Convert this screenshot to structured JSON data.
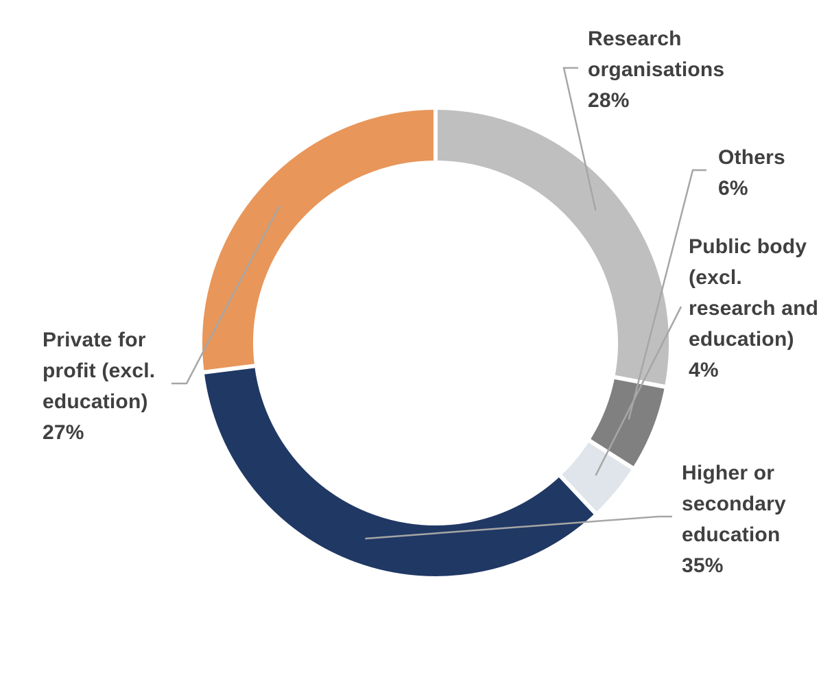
{
  "chart_data": {
    "type": "pie",
    "variant": "donut",
    "start": "top",
    "direction": "clockwise",
    "legend": "none",
    "grid": false,
    "slices": [
      {
        "label": "Research organisations",
        "label_lines": [
          "Research",
          "organisations"
        ],
        "value": 28,
        "value_label": "28%",
        "color": "#BFBFBF"
      },
      {
        "label": "Others",
        "label_lines": [
          "Others"
        ],
        "value": 6,
        "value_label": "6%",
        "color": "#808080"
      },
      {
        "label": "Public body (excl. research and education)",
        "label_lines": [
          "Public body",
          "(excl.",
          "research and",
          "education)"
        ],
        "value": 4,
        "value_label": "4%",
        "color": "#DFE5EA"
      },
      {
        "label": "Higher or secondary education",
        "label_lines": [
          "Higher or",
          "secondary",
          "education"
        ],
        "value": 35,
        "value_label": "35%",
        "color": "#203864"
      },
      {
        "label": "Private for profit (excl. education)",
        "label_lines": [
          "Private for",
          "profit (excl.",
          "education)"
        ],
        "value": 27,
        "value_label": "27%",
        "color": "#E8965A"
      }
    ],
    "leader_line_color": "#A6A6A6"
  }
}
